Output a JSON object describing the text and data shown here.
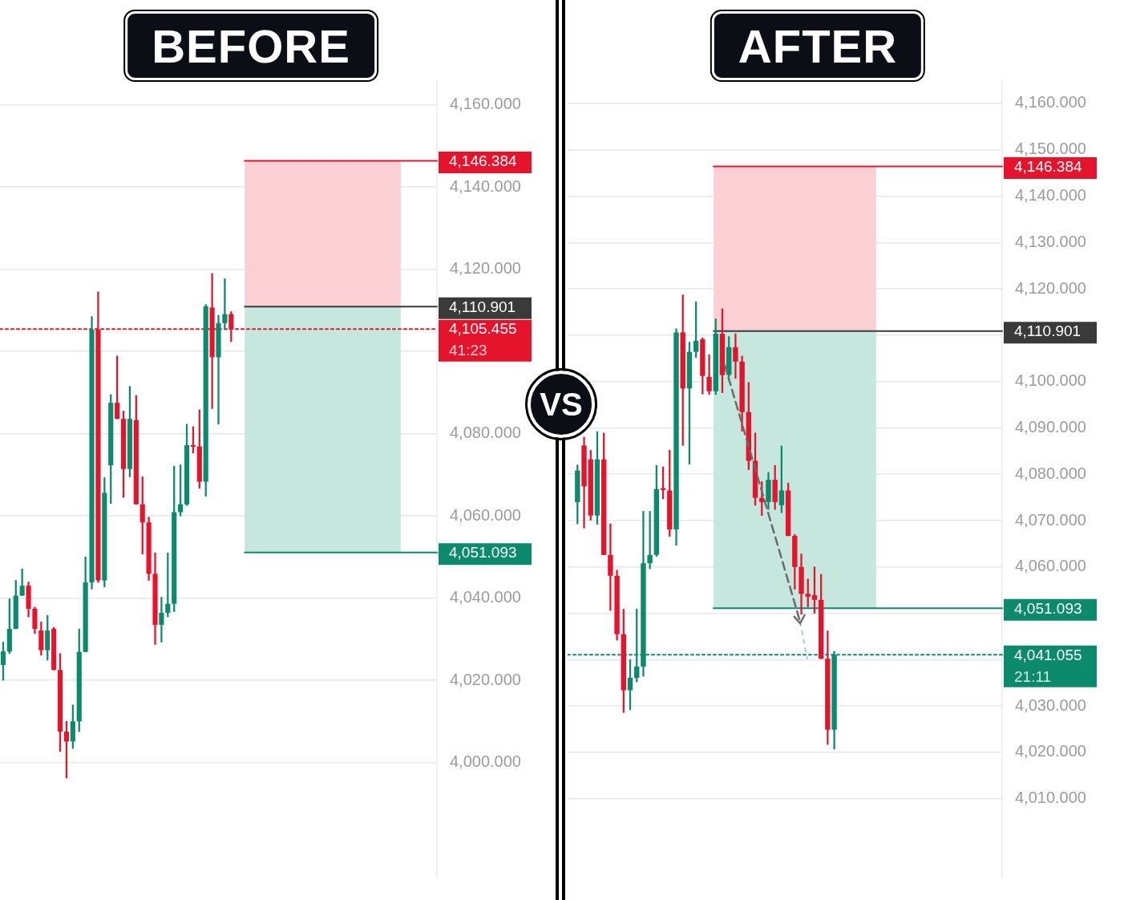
{
  "chart_data": [
    {
      "type": "candlestick",
      "title": "BEFORE",
      "tick_labels": "y",
      "grid": "y",
      "categories": [
        null,
        null,
        null,
        null,
        null,
        null,
        null,
        null,
        null,
        null,
        null,
        null,
        null,
        null,
        null,
        null,
        null,
        null,
        null,
        null,
        null,
        null,
        null,
        null,
        null,
        null,
        null,
        null,
        null,
        null,
        null,
        null,
        null,
        null,
        null,
        null,
        null,
        null,
        null,
        null,
        null,
        null,
        null,
        null,
        null,
        null,
        null,
        null,
        null,
        null,
        null,
        null,
        null,
        null,
        null,
        null,
        null,
        null,
        null,
        null,
        null,
        null,
        null,
        null,
        null,
        null,
        null,
        null,
        null
      ],
      "ohlc": [
        [
          4023.7,
          4029.3,
          4020.0,
          4027.0
        ],
        [
          4027.0,
          4039.8,
          4026.5,
          4032.5
        ],
        [
          4032.5,
          4044.3,
          4032.5,
          4040.6
        ],
        [
          4040.6,
          4047.1,
          4040.6,
          4043.0
        ],
        [
          4043.0,
          4043.9,
          4035.4,
          4037.4
        ],
        [
          4037.4,
          4037.8,
          4031.4,
          4032.5
        ],
        [
          4032.1,
          4034.2,
          4026.1,
          4027.3
        ],
        [
          4027.3,
          4035.8,
          4024.9,
          4032.1
        ],
        [
          4032.5,
          4032.9,
          4022.5,
          4022.5
        ],
        [
          4022.5,
          4026.5,
          4002.7,
          4007.5
        ],
        [
          4007.5,
          4010.0,
          3996.2,
          4005.1
        ],
        [
          4005.1,
          4014.0,
          4003.4,
          4010.0
        ],
        [
          4010.0,
          4032.5,
          4007.5,
          4026.9
        ],
        [
          4026.9,
          4050.0,
          4026.9,
          4043.8
        ],
        [
          4043.8,
          4108.5,
          4042.2,
          4105.3
        ],
        [
          4105.3,
          4114.5,
          4043.8,
          4044.3
        ],
        [
          4044.3,
          4069.3,
          4042.7,
          4065.6
        ],
        [
          4072.3,
          4089.5,
          4063.0,
          4087.5
        ],
        [
          4087.5,
          4098.9,
          4083.6,
          4083.6
        ],
        [
          4083.6,
          4085.5,
          4064.5,
          4071.4
        ],
        [
          4071.4,
          4091.5,
          4069.5,
          4083.6
        ],
        [
          4083.3,
          4089.3,
          4062.8,
          4062.8
        ],
        [
          4062.8,
          4069.5,
          4050.7,
          4058.4
        ],
        [
          4058.4,
          4059.7,
          4044.3,
          4045.9
        ],
        [
          4045.9,
          4051.0,
          4028.7,
          4033.5
        ],
        [
          4033.5,
          4040.2,
          4029.3,
          4036.4
        ],
        [
          4036.4,
          4051.0,
          4035.4,
          4038.6
        ],
        [
          4038.6,
          4072.1,
          4036.7,
          4060.9
        ],
        [
          4060.9,
          4072.4,
          4060.0,
          4062.8
        ],
        [
          4062.8,
          4082.3,
          4062.5,
          4077.2
        ],
        [
          4077.2,
          4081.7,
          4075.3,
          4076.8
        ],
        [
          4076.9,
          4085.8,
          4066.7,
          4068.3
        ],
        [
          4068.3,
          4111.4,
          4064.8,
          4111.0
        ],
        [
          4110.7,
          4119.0,
          4086.1,
          4098.6
        ],
        [
          4098.6,
          4108.8,
          4082.3,
          4106.9
        ],
        [
          4106.9,
          4117.7,
          4105.3,
          4109.1
        ],
        [
          4109.1,
          4109.7,
          4102.4,
          4105.455
        ],
        null,
        null,
        null,
        null,
        null,
        null,
        null,
        null,
        null,
        null,
        null,
        null,
        null,
        null,
        null,
        null,
        null,
        null,
        null,
        null,
        null,
        null,
        null,
        null,
        null,
        null,
        null,
        null,
        null,
        null,
        null,
        null
      ],
      "ylim": [
        3972,
        4166
      ],
      "yticks": [
        {
          "value": 4000,
          "label": "4,000.000"
        },
        {
          "value": 4020,
          "label": "4,020.000"
        },
        {
          "value": 4040,
          "label": "4,040.000"
        },
        {
          "value": 4060,
          "label": "4,060.000"
        },
        {
          "value": 4080,
          "label": "4,080.000"
        },
        {
          "value": 4100,
          "label": null
        },
        {
          "value": 4120,
          "label": "4,120.000"
        },
        {
          "value": 4140,
          "label": "4,140.000"
        },
        {
          "value": 4160,
          "label": "4,160.000"
        }
      ],
      "bands": [
        {
          "axis": "y",
          "from": 4110.901,
          "to": 4146.384,
          "color": "#fbd0d4"
        },
        {
          "axis": "y",
          "from": 4051.093,
          "to": 4110.901,
          "color": "#c6e7de"
        }
      ],
      "ref_lines": [
        {
          "axis": "y",
          "value": 4146.384,
          "label": "4,146.384",
          "color": "#e5132c",
          "line_style": "solid"
        },
        {
          "axis": "y",
          "value": 4110.901,
          "label": "4,110.901",
          "color": "#3a3a3a",
          "line_style": "solid"
        },
        {
          "axis": "y",
          "value": 4105.455,
          "label": "4,105.455\n41:23",
          "color": "#e5132c",
          "line_style": "dotted"
        },
        {
          "axis": "y",
          "value": 4051.093,
          "label": "4,051.093",
          "color": "#0b8a6c",
          "line_style": "solid"
        }
      ],
      "annotations": [
        "VS"
      ]
    },
    {
      "type": "candlestick",
      "title": "AFTER",
      "tick_labels": "y",
      "grid": "y",
      "categories": [
        null,
        null,
        null,
        null,
        null,
        null,
        null,
        null,
        null,
        null,
        null,
        null,
        null,
        null,
        null,
        null,
        null,
        null,
        null,
        null,
        null,
        null,
        null,
        null,
        null,
        null,
        null,
        null,
        null,
        null,
        null,
        null,
        null,
        null,
        null,
        null,
        null,
        null,
        null,
        null,
        null,
        null,
        null,
        null,
        null,
        null,
        null,
        null,
        null,
        null,
        null,
        null,
        null,
        null,
        null,
        null,
        null,
        null,
        null,
        null,
        null,
        null,
        null,
        null,
        null,
        null
      ],
      "ohlc": [
        null,
        [
          4074.0,
          4082.0,
          4069.3,
          4080.8
        ],
        [
          4086.2,
          4088.0,
          4068.4,
          4077.4
        ],
        [
          4083.2,
          4085.2,
          4070.1,
          4071.1
        ],
        [
          4071.1,
          4089.2,
          4069.2,
          4083.2
        ],
        [
          4083.2,
          4088.9,
          4062.6,
          4062.6
        ],
        [
          4062.6,
          4069.3,
          4050.6,
          4058.1
        ],
        [
          4058.1,
          4059.3,
          4044.2,
          4045.5
        ],
        [
          4045.5,
          4050.9,
          4028.6,
          4033.4
        ],
        [
          4033.4,
          4040.0,
          4029.2,
          4036.1
        ],
        [
          4036.1,
          4050.9,
          4035.2,
          4038.5
        ],
        [
          4038.5,
          4072.0,
          4036.4,
          4060.8
        ],
        [
          4060.8,
          4072.0,
          4059.6,
          4062.6
        ],
        [
          4062.6,
          4081.9,
          4062.3,
          4076.8
        ],
        [
          4077.0,
          4081.6,
          4074.7,
          4076.6
        ],
        [
          4076.5,
          4085.2,
          4066.6,
          4068.1
        ],
        [
          4068.1,
          4111.4,
          4064.7,
          4110.6
        ],
        [
          4110.6,
          4118.7,
          4086.2,
          4098.5
        ],
        [
          4098.5,
          4108.5,
          4082.2,
          4106.4
        ],
        [
          4106.4,
          4117.2,
          4105.2,
          4108.8
        ],
        [
          4109.1,
          4109.4,
          4097.3,
          4101.2
        ],
        [
          4101.0,
          4105.8,
          4097.2,
          4097.9
        ],
        [
          4097.9,
          4113.5,
          4097.2,
          4110.3
        ],
        [
          4110.3,
          4115.7,
          4097.6,
          4101.4
        ],
        [
          4101.4,
          4109.7,
          4101.0,
          4107.4
        ],
        [
          4107.4,
          4110.3,
          4100.7,
          4104.3
        ],
        [
          4104.3,
          4105.5,
          4089.3,
          4093.4
        ],
        [
          4093.4,
          4099.8,
          4081.0,
          4082.9
        ],
        [
          4082.9,
          4088.9,
          4073.3,
          4074.9
        ],
        [
          4074.9,
          4078.4,
          4071.1,
          4074.0
        ],
        [
          4074.0,
          4080.4,
          4072.4,
          4078.8
        ],
        [
          4078.8,
          4081.9,
          4072.4,
          4074.0
        ],
        [
          4073.3,
          4086.1,
          4071.7,
          4076.5
        ],
        [
          4076.5,
          4078.1,
          4066.7,
          4066.7
        ],
        [
          4066.7,
          4067.0,
          4055.2,
          4060.0
        ],
        [
          4060.0,
          4062.8,
          4049.8,
          4054.2
        ],
        [
          4054.2,
          4057.4,
          4051.4,
          4053.6
        ],
        [
          4053.9,
          4060.0,
          4050.0,
          4052.9
        ],
        [
          4052.9,
          4058.4,
          4040.2,
          4040.2
        ],
        [
          4040.2,
          4046.2,
          4021.7,
          4024.9
        ],
        [
          4024.9,
          4041.8,
          4020.7,
          4041.055
        ],
        null,
        null,
        null,
        null,
        null,
        null,
        null,
        null,
        null,
        null,
        null,
        null,
        null,
        null,
        null,
        null,
        null,
        null,
        null,
        null,
        null,
        null,
        null,
        null,
        null
      ],
      "ylim": [
        3993,
        4165
      ],
      "yticks": [
        {
          "value": 4010,
          "label": "4,010.000"
        },
        {
          "value": 4020,
          "label": "4,020.000"
        },
        {
          "value": 4030,
          "label": "4,030.000"
        },
        {
          "value": 4040,
          "label": null
        },
        {
          "value": 4050,
          "label": null
        },
        {
          "value": 4060,
          "label": "4,060.000"
        },
        {
          "value": 4070,
          "label": "4,070.000"
        },
        {
          "value": 4080,
          "label": "4,080.000"
        },
        {
          "value": 4090,
          "label": "4,090.000"
        },
        {
          "value": 4100,
          "label": "4,100.000"
        },
        {
          "value": 4110,
          "label": null
        },
        {
          "value": 4120,
          "label": "4,120.000"
        },
        {
          "value": 4130,
          "label": "4,130.000"
        },
        {
          "value": 4140,
          "label": "4,140.000"
        },
        {
          "value": 4150,
          "label": "4,150.000"
        },
        {
          "value": 4160,
          "label": "4,160.000"
        }
      ],
      "bands": [
        {
          "axis": "y",
          "from": 4110.901,
          "to": 4146.384,
          "color": "#fbd0d4"
        },
        {
          "axis": "y",
          "from": 4051.093,
          "to": 4110.901,
          "color": "#c6e7de"
        }
      ],
      "ref_lines": [
        {
          "axis": "y",
          "value": 4146.384,
          "label": "4,146.384",
          "color": "#e5132c",
          "line_style": "solid"
        },
        {
          "axis": "y",
          "value": 4110.901,
          "label": "4,110.901",
          "color": "#3a3a3a",
          "line_style": "solid"
        },
        {
          "axis": "y",
          "value": 4051.093,
          "label": "4,051.093",
          "color": "#0b8a6c",
          "line_style": "solid"
        },
        {
          "axis": "y",
          "value": 4041.055,
          "label": "4,041.055\n21:11",
          "color": "#0b8a6c",
          "line_style": "dotted"
        }
      ]
    }
  ]
}
